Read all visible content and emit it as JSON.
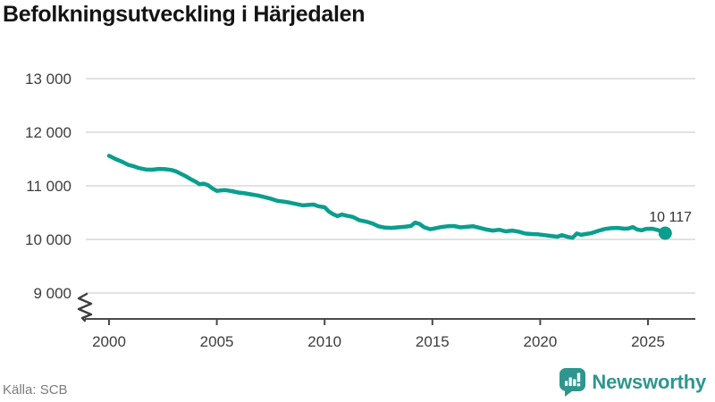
{
  "title": "Befolkningsutveckling i Härjedalen",
  "source": "Källa: SCB",
  "brand": {
    "name": "Newsworthy",
    "color": "#2e968e",
    "icon": "newsworthy-bubble-chart-icon"
  },
  "colors": {
    "line": "#0a9e8e",
    "grid": "#e2e2e2",
    "axis": "#4a4a4a",
    "tick_text": "#3d3d3d",
    "annotation_text": "#333333"
  },
  "chart_data": {
    "type": "line",
    "title": "Befolkningsutveckling i Härjedalen",
    "xlabel": "",
    "ylabel": "",
    "grid": "horizontal",
    "legend": "none",
    "axis_break": true,
    "ylim": [
      9000,
      13000
    ],
    "xlim": [
      2000,
      2026
    ],
    "y_tick_values": [
      9000,
      10000,
      11000,
      12000,
      13000
    ],
    "y_tick_labels": [
      "9 000",
      "10 000",
      "11 000",
      "12 000",
      "13 000"
    ],
    "x_tick_years": [
      2000,
      2005,
      2010,
      2015,
      2020,
      2025
    ],
    "x_tick_labels": [
      "2000",
      "2005",
      "2010",
      "2015",
      "2020",
      "2025"
    ],
    "end_label": "10 117",
    "end_value": 10117,
    "series": [
      {
        "name": "Befolkning",
        "x": [
          2000.0,
          2000.3,
          2000.6,
          2000.9,
          2001.1,
          2001.4,
          2001.7,
          2002.0,
          2002.3,
          2002.6,
          2002.9,
          2003.1,
          2003.4,
          2003.6,
          2003.8,
          2004.0,
          2004.2,
          2004.4,
          2004.6,
          2004.8,
          2005.0,
          2005.2,
          2005.4,
          2005.7,
          2006.0,
          2006.3,
          2006.6,
          2006.9,
          2007.2,
          2007.5,
          2007.8,
          2008.1,
          2008.4,
          2008.7,
          2009.0,
          2009.3,
          2009.5,
          2009.7,
          2010.0,
          2010.2,
          2010.4,
          2010.6,
          2010.8,
          2011.0,
          2011.3,
          2011.6,
          2011.9,
          2012.2,
          2012.5,
          2012.8,
          2013.1,
          2013.4,
          2013.7,
          2014.0,
          2014.2,
          2014.4,
          2014.6,
          2014.9,
          2015.1,
          2015.4,
          2015.7,
          2016.0,
          2016.3,
          2016.6,
          2016.9,
          2017.2,
          2017.5,
          2017.8,
          2018.1,
          2018.4,
          2018.7,
          2019.0,
          2019.3,
          2019.6,
          2019.9,
          2020.2,
          2020.5,
          2020.8,
          2021.0,
          2021.3,
          2021.5,
          2021.7,
          2021.9,
          2022.1,
          2022.4,
          2022.7,
          2023.0,
          2023.3,
          2023.6,
          2023.9,
          2024.1,
          2024.3,
          2024.5,
          2024.7,
          2024.9,
          2025.2,
          2025.5,
          2025.8
        ],
        "y": [
          11560,
          11500,
          11450,
          11390,
          11370,
          11330,
          11305,
          11300,
          11315,
          11310,
          11295,
          11270,
          11210,
          11170,
          11120,
          11080,
          11030,
          11040,
          11010,
          10950,
          10905,
          10915,
          10920,
          10900,
          10875,
          10860,
          10840,
          10820,
          10790,
          10760,
          10720,
          10705,
          10685,
          10660,
          10635,
          10645,
          10650,
          10620,
          10600,
          10520,
          10470,
          10435,
          10465,
          10445,
          10420,
          10360,
          10335,
          10300,
          10245,
          10220,
          10215,
          10225,
          10235,
          10250,
          10315,
          10290,
          10230,
          10190,
          10205,
          10230,
          10245,
          10250,
          10225,
          10235,
          10245,
          10215,
          10185,
          10165,
          10180,
          10150,
          10165,
          10145,
          10110,
          10100,
          10095,
          10080,
          10065,
          10050,
          10080,
          10045,
          10030,
          10110,
          10085,
          10100,
          10120,
          10160,
          10195,
          10210,
          10215,
          10200,
          10205,
          10230,
          10185,
          10170,
          10195,
          10200,
          10170,
          10117
        ]
      }
    ]
  }
}
